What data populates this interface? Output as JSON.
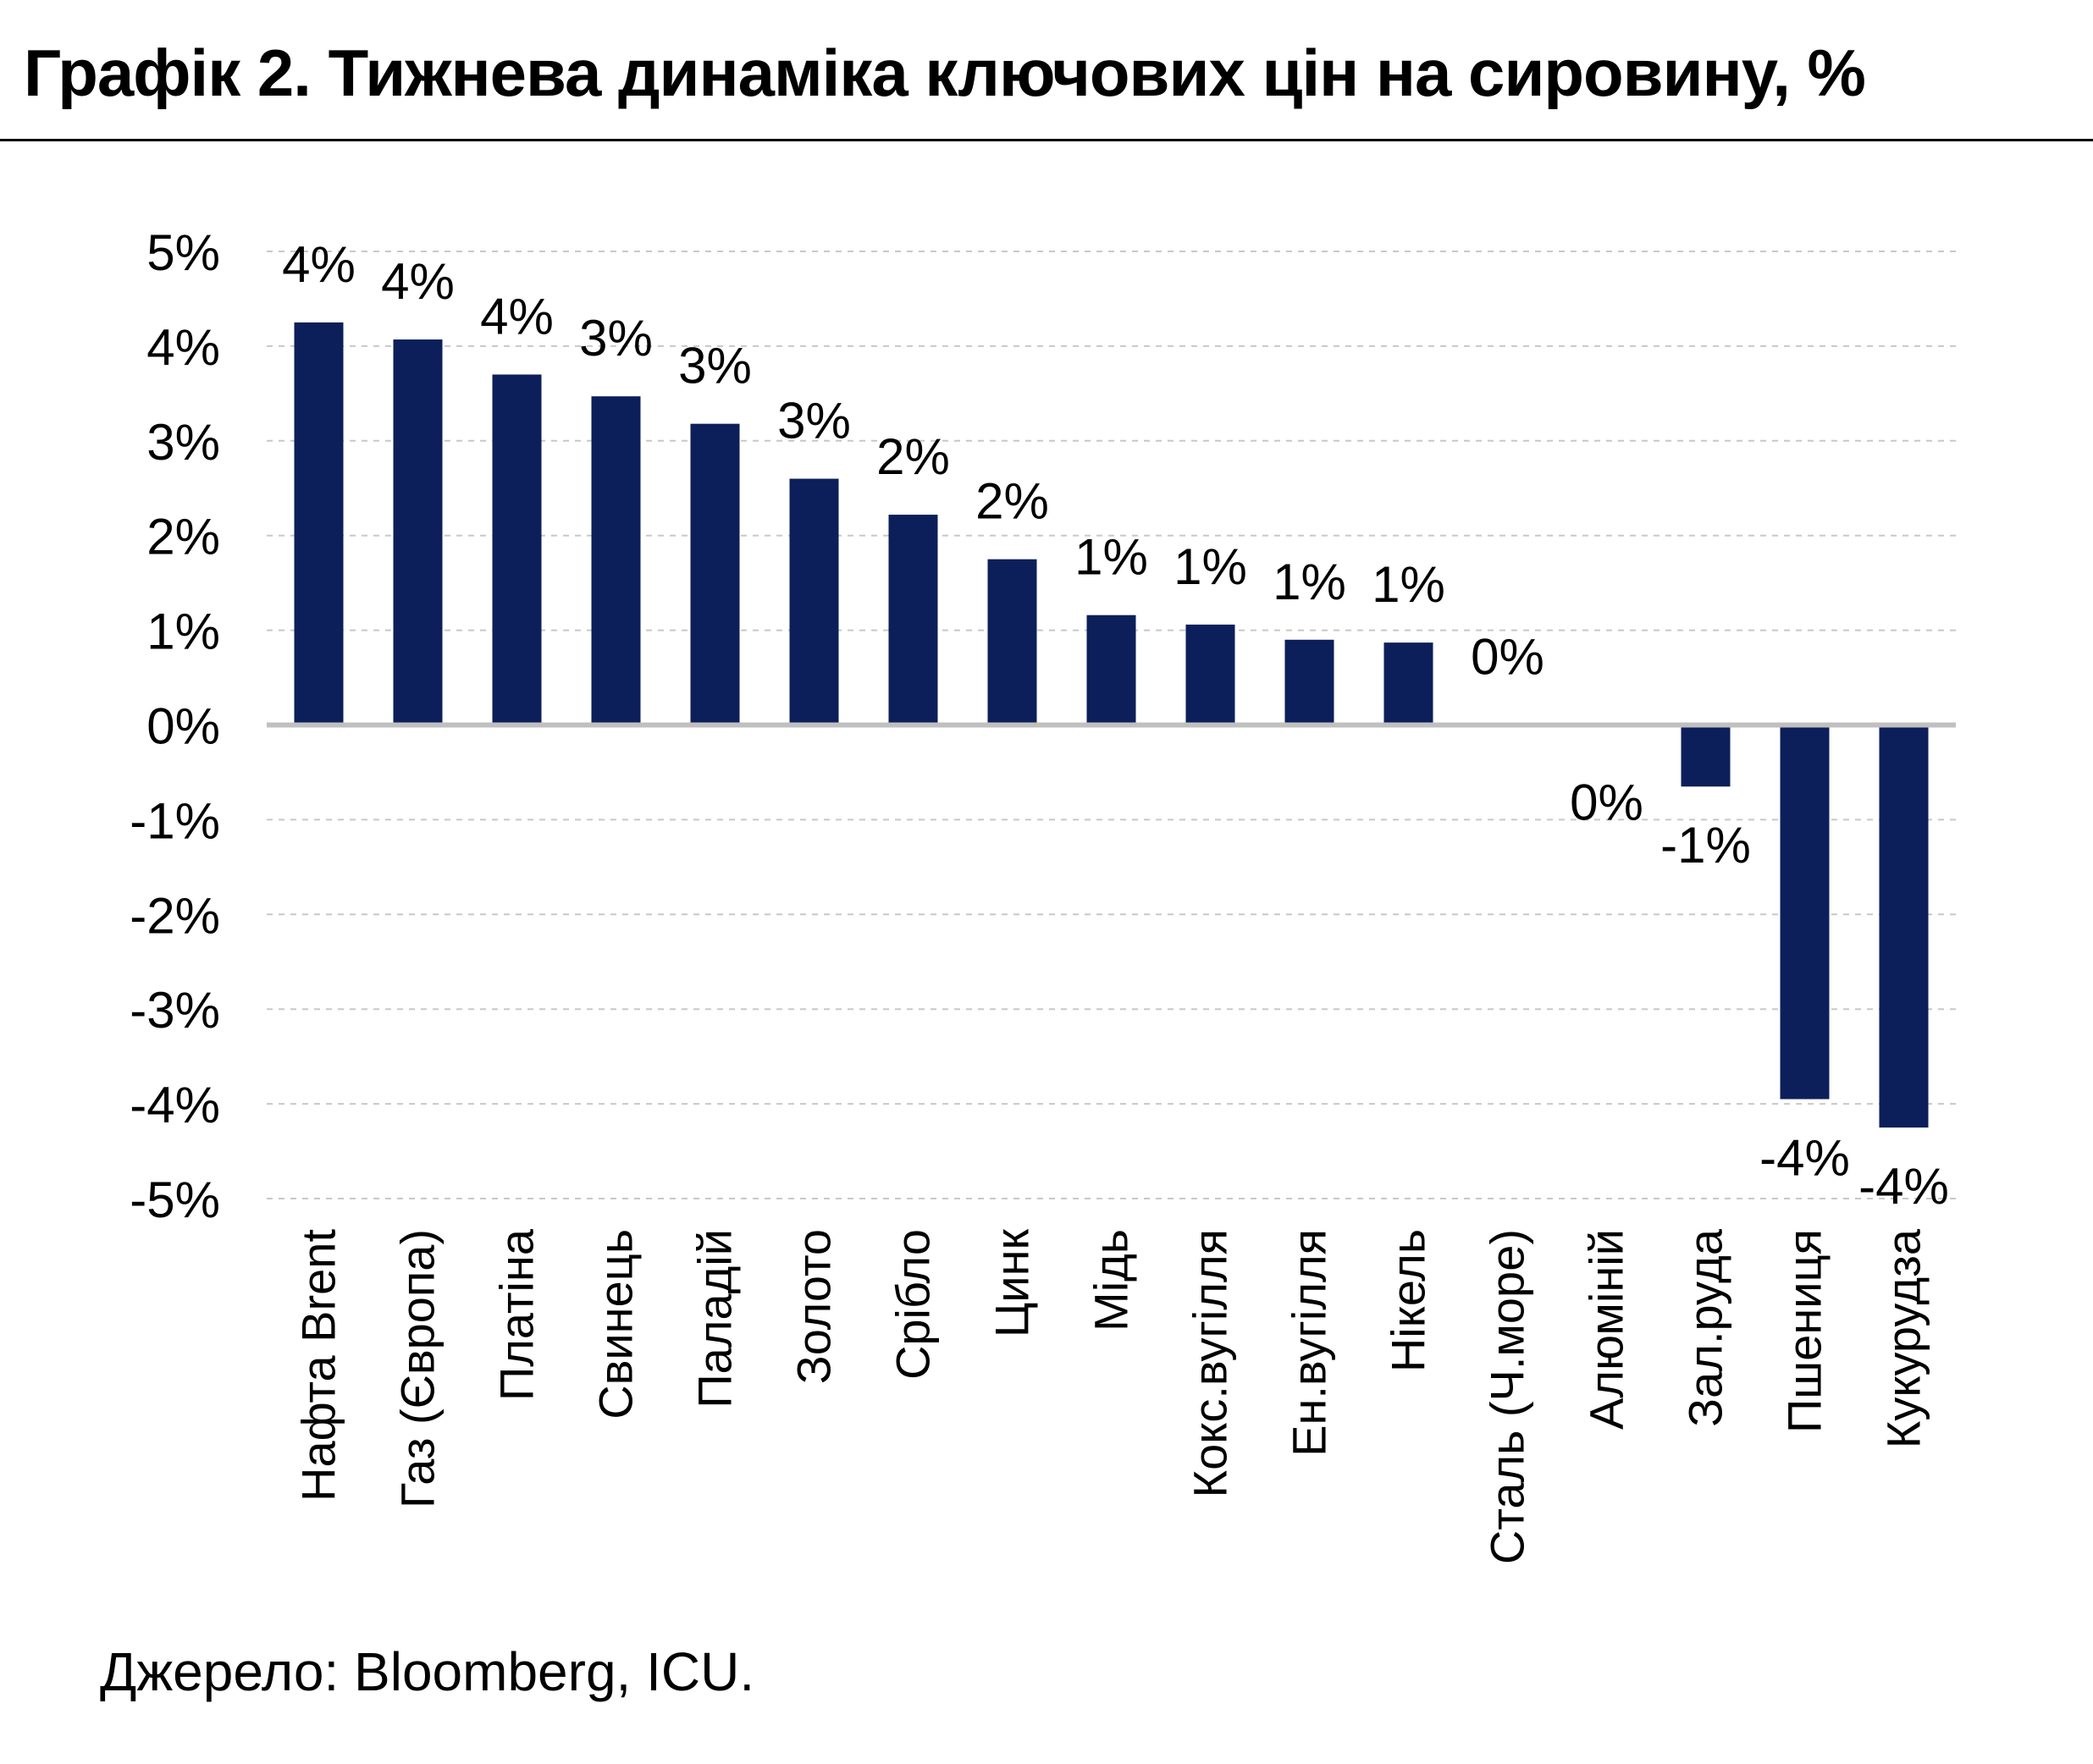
{
  "title": "Графік 2. Тижнева динаміка ключових цін на сировину, %",
  "source": "Джерело: Bloomberg, ICU.",
  "chart_data": {
    "type": "bar",
    "title": "Графік 2. Тижнева динаміка ключових цін на сировину, %",
    "xlabel": "",
    "ylabel": "",
    "ylim": [
      -5,
      5
    ],
    "yticks": [
      "5%",
      "4%",
      "3%",
      "2%",
      "1%",
      "0%",
      "-1%",
      "-2%",
      "-3%",
      "-4%",
      "-5%"
    ],
    "grid": true,
    "categories": [
      "Нафта Brent",
      "Газ (Європа)",
      "Платіна",
      "Свинець",
      "Паладій",
      "Золото",
      "Срібло",
      "Цинк",
      "Мідь",
      "Кокс.вугілля",
      "Ен.вугілля",
      "Нікель",
      "Сталь (Ч.море)",
      "Алюміній",
      "Зал.руда",
      "Пшениця",
      "Кукурудза"
    ],
    "values": [
      4.25,
      4.07,
      3.7,
      3.47,
      3.18,
      2.6,
      2.22,
      1.75,
      1.16,
      1.06,
      0.9,
      0.87,
      0.0,
      -0.02,
      -0.65,
      -3.95,
      -4.25
    ],
    "data_labels": [
      "4%",
      "4%",
      "4%",
      "3%",
      "3%",
      "3%",
      "2%",
      "2%",
      "1%",
      "1%",
      "1%",
      "1%",
      "0%",
      "0%",
      "-1%",
      "-4%",
      "-4%"
    ],
    "bar_color": "#0c1f5a",
    "grid_color": "#c8c8c8",
    "zero_line_color": "#c0c0c0"
  }
}
